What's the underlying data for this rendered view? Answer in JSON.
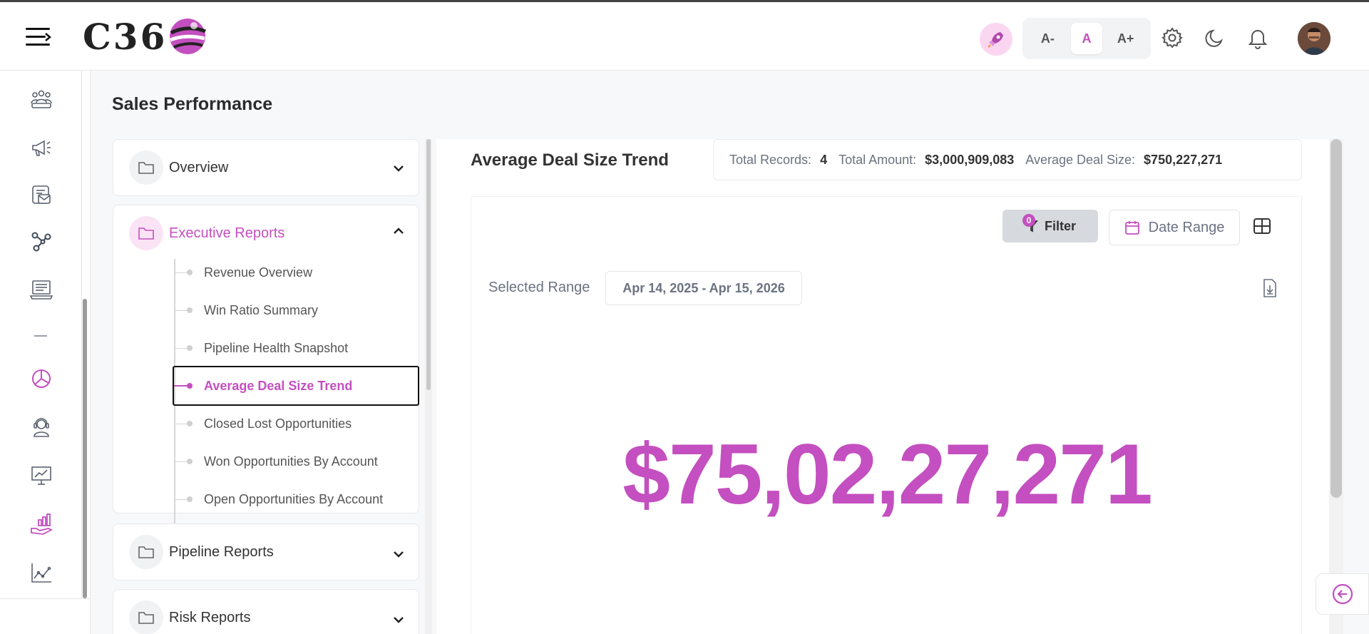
{
  "app": {
    "logo_text": "C36"
  },
  "topbar": {
    "font_decrease": "A-",
    "font_default": "A",
    "font_increase": "A+"
  },
  "page": {
    "title": "Sales Performance"
  },
  "nav": {
    "sections": [
      {
        "label": "Overview",
        "expanded": false
      },
      {
        "label": "Executive Reports",
        "expanded": true,
        "items": [
          {
            "label": "Revenue Overview"
          },
          {
            "label": "Win Ratio Summary"
          },
          {
            "label": "Pipeline Health Snapshot"
          },
          {
            "label": "Average Deal Size Trend",
            "active": true
          },
          {
            "label": "Closed Lost Opportunities"
          },
          {
            "label": "Won Opportunities By Account"
          },
          {
            "label": "Open Opportunities By Account"
          }
        ]
      },
      {
        "label": "Pipeline Reports",
        "expanded": false
      },
      {
        "label": "Risk Reports",
        "expanded": false
      }
    ]
  },
  "report": {
    "title": "Average Deal Size Trend",
    "stats": {
      "total_records_label": "Total Records:",
      "total_records_value": "4",
      "total_amount_label": "Total Amount:",
      "total_amount_value": "$3,000,909,083",
      "avg_deal_label": "Average Deal Size:",
      "avg_deal_value": "$750,227,271"
    },
    "filter_label": "Filter",
    "filter_count": "0",
    "date_range_label": "Date Range",
    "selected_range_label": "Selected Range",
    "selected_range_value": "Apr 14, 2025 - Apr 15, 2026",
    "big_value": "$75,02,27,271"
  },
  "colors": {
    "accent": "#c44fc0",
    "accent_light": "#fbe3f6"
  },
  "icons": {
    "rail": [
      "team-icon",
      "megaphone-icon",
      "mail-stack-icon",
      "network-icon",
      "computer-icon",
      "dash-icon",
      "pie-chart-icon",
      "support-agent-icon",
      "presentation-chart-icon",
      "hand-chart-icon",
      "line-chart-icon"
    ]
  }
}
